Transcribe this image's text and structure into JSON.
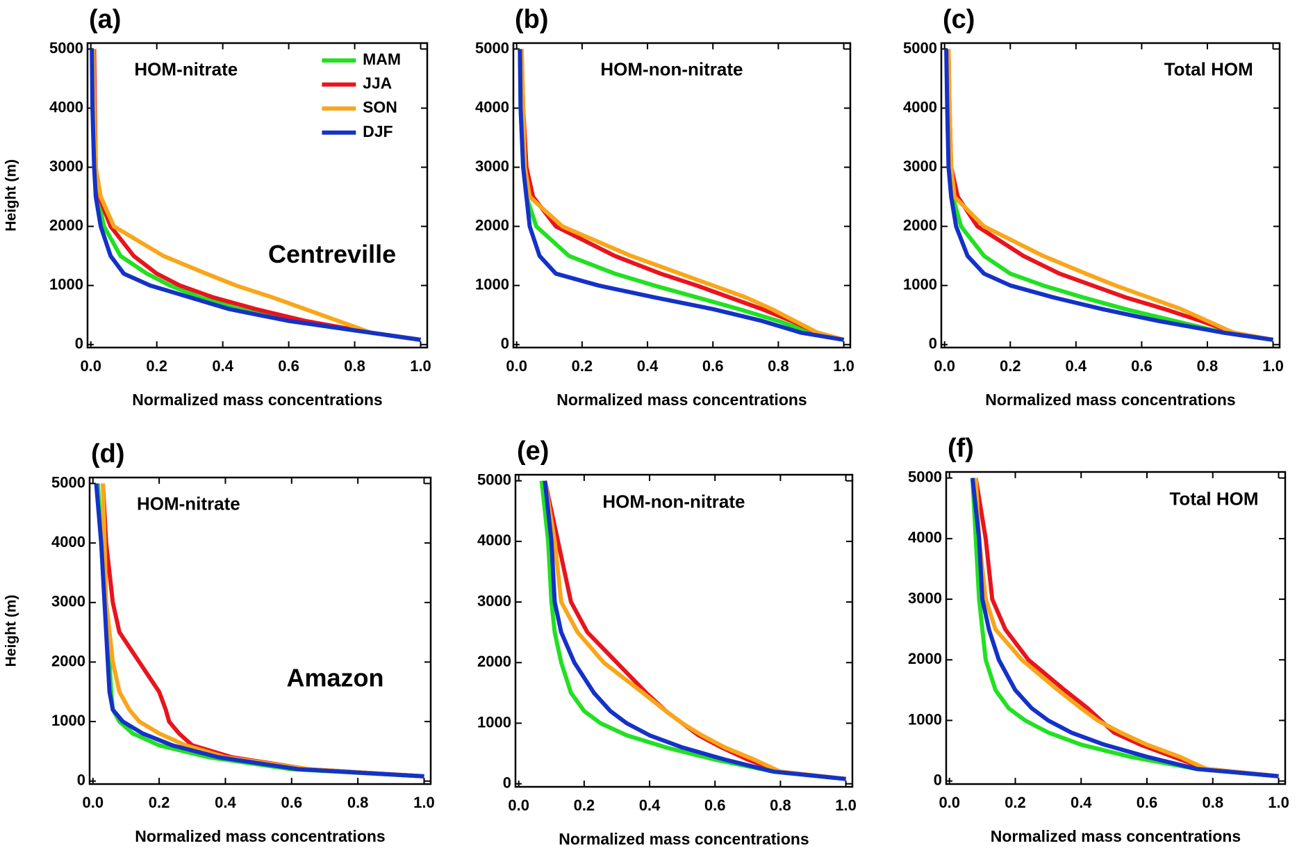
{
  "chart_data": [
    {
      "type": "line",
      "panel": "(a)",
      "annotation": "HOM-nitrate",
      "site": "Centreville",
      "xlabel": "Normalized mass concentrations",
      "ylabel": "Height (m)",
      "legend": "upper right",
      "xlim": [
        -0.01,
        1.02
      ],
      "ylim": [
        -50,
        5100
      ],
      "xticks": [
        {
          "value": 0,
          "label": "0.0"
        },
        0.2,
        0.4,
        0.6,
        0.8,
        {
          "value": 1,
          "label": "1.0"
        }
      ],
      "yticks": [
        0,
        1000,
        2000,
        3000,
        4000,
        5000
      ],
      "y": [
        80,
        200,
        400,
        600,
        800,
        1000,
        1200,
        1500,
        2000,
        2500,
        3000,
        4000,
        5000
      ],
      "series": [
        {
          "name": "MAM",
          "color": "#22e022",
          "values": [
            1.0,
            0.85,
            0.6,
            0.45,
            0.33,
            0.24,
            0.17,
            0.09,
            0.04,
            0.02,
            0.015,
            0.01,
            0.005
          ]
        },
        {
          "name": "JJA",
          "color": "#e8141e",
          "values": [
            1.0,
            0.85,
            0.65,
            0.5,
            0.37,
            0.27,
            0.2,
            0.13,
            0.06,
            0.025,
            0.015,
            0.012,
            0.01
          ]
        },
        {
          "name": "SON",
          "color": "#f9a61a",
          "values": [
            1.0,
            0.85,
            0.75,
            0.65,
            0.55,
            0.44,
            0.35,
            0.22,
            0.07,
            0.03,
            0.015,
            0.01,
            0.008
          ]
        },
        {
          "name": "DJF",
          "color": "#1432c8",
          "values": [
            1.0,
            0.85,
            0.6,
            0.42,
            0.3,
            0.18,
            0.1,
            0.06,
            0.03,
            0.015,
            0.01,
            0.005,
            0.003
          ]
        }
      ]
    },
    {
      "type": "line",
      "panel": "(b)",
      "annotation": "HOM-non-nitrate",
      "xlabel": "Normalized mass concentrations",
      "xlim": [
        -0.01,
        1.02
      ],
      "ylim": [
        -50,
        5100
      ],
      "xticks": [
        {
          "value": 0,
          "label": "0.0"
        },
        0.2,
        0.4,
        0.6,
        0.8,
        {
          "value": 1,
          "label": "1.0"
        }
      ],
      "yticks": [
        0,
        1000,
        2000,
        3000,
        4000,
        5000
      ],
      "y": [
        80,
        200,
        400,
        600,
        800,
        1000,
        1200,
        1500,
        2000,
        2500,
        3000,
        4000,
        5000
      ],
      "series": [
        {
          "color": "#22e022",
          "values": [
            1.0,
            0.9,
            0.8,
            0.68,
            0.55,
            0.42,
            0.3,
            0.16,
            0.06,
            0.03,
            0.02,
            0.012,
            0.01
          ]
        },
        {
          "color": "#e8141e",
          "values": [
            1.0,
            0.92,
            0.84,
            0.75,
            0.65,
            0.55,
            0.44,
            0.3,
            0.12,
            0.05,
            0.03,
            0.02,
            0.015
          ]
        },
        {
          "color": "#f9a61a",
          "values": [
            1.0,
            0.92,
            0.85,
            0.78,
            0.7,
            0.6,
            0.5,
            0.35,
            0.14,
            0.04,
            0.025,
            0.02,
            0.015
          ]
        },
        {
          "color": "#1432c8",
          "values": [
            1.0,
            0.87,
            0.75,
            0.6,
            0.42,
            0.25,
            0.12,
            0.07,
            0.04,
            0.03,
            0.02,
            0.012,
            0.01
          ]
        }
      ]
    },
    {
      "type": "line",
      "panel": "(c)",
      "annotation": "Total HOM",
      "xlabel": "Normalized mass concentrations",
      "xlim": [
        -0.01,
        1.02
      ],
      "ylim": [
        -50,
        5100
      ],
      "xticks": [
        {
          "value": 0,
          "label": "0.0"
        },
        0.2,
        0.4,
        0.6,
        0.8,
        {
          "value": 1,
          "label": "1.0"
        }
      ],
      "yticks": [
        0,
        1000,
        2000,
        3000,
        4000,
        5000
      ],
      "y": [
        80,
        200,
        400,
        600,
        800,
        1000,
        1200,
        1500,
        2000,
        2500,
        3000,
        4000,
        5000
      ],
      "series": [
        {
          "color": "#22e022",
          "values": [
            1.0,
            0.85,
            0.7,
            0.55,
            0.42,
            0.3,
            0.2,
            0.12,
            0.05,
            0.025,
            0.015,
            0.01,
            0.008
          ]
        },
        {
          "color": "#e8141e",
          "values": [
            1.0,
            0.88,
            0.78,
            0.67,
            0.55,
            0.45,
            0.35,
            0.24,
            0.1,
            0.04,
            0.02,
            0.015,
            0.012
          ]
        },
        {
          "color": "#f9a61a",
          "values": [
            1.0,
            0.88,
            0.8,
            0.72,
            0.62,
            0.52,
            0.43,
            0.3,
            0.12,
            0.03,
            0.02,
            0.015,
            0.012
          ]
        },
        {
          "color": "#1432c8",
          "values": [
            1.0,
            0.85,
            0.65,
            0.48,
            0.33,
            0.2,
            0.12,
            0.07,
            0.035,
            0.02,
            0.012,
            0.008,
            0.005
          ]
        }
      ]
    },
    {
      "type": "line",
      "panel": "(d)",
      "annotation": "HOM-nitrate",
      "site": "Amazon",
      "xlabel": "Normalized mass concentrations",
      "ylabel": "Height (m)",
      "xlim": [
        -0.01,
        1.02
      ],
      "ylim": [
        -50,
        5100
      ],
      "xticks": [
        {
          "value": 0,
          "label": "0.0"
        },
        0.2,
        0.4,
        0.6,
        0.8,
        {
          "value": 1,
          "label": "1.0"
        }
      ],
      "yticks": [
        0,
        1000,
        2000,
        3000,
        4000,
        5000
      ],
      "y": [
        80,
        200,
        400,
        600,
        800,
        1000,
        1200,
        1500,
        2000,
        2500,
        3000,
        4000,
        5000
      ],
      "series": [
        {
          "color": "#22e022",
          "values": [
            1.0,
            0.6,
            0.35,
            0.2,
            0.12,
            0.08,
            0.06,
            0.055,
            0.05,
            0.045,
            0.035,
            0.025,
            0.015
          ]
        },
        {
          "color": "#e8141e",
          "values": [
            1.0,
            0.65,
            0.42,
            0.3,
            0.26,
            0.23,
            0.22,
            0.2,
            0.14,
            0.08,
            0.06,
            0.04,
            0.03
          ]
        },
        {
          "color": "#f9a61a",
          "values": [
            1.0,
            0.65,
            0.4,
            0.28,
            0.2,
            0.14,
            0.11,
            0.08,
            0.06,
            0.05,
            0.04,
            0.035,
            0.03
          ]
        },
        {
          "color": "#1432c8",
          "values": [
            1.0,
            0.62,
            0.38,
            0.24,
            0.15,
            0.09,
            0.06,
            0.05,
            0.045,
            0.04,
            0.035,
            0.025,
            0.01
          ]
        }
      ]
    },
    {
      "type": "line",
      "panel": "(e)",
      "annotation": "HOM-non-nitrate",
      "xlabel": "Normalized mass concentrations",
      "xlim": [
        -0.01,
        1.02
      ],
      "ylim": [
        -50,
        5100
      ],
      "xticks": [
        {
          "value": 0,
          "label": "0.0"
        },
        0.2,
        0.4,
        0.6,
        0.8,
        {
          "value": 1,
          "label": "1.0"
        }
      ],
      "yticks": [
        0,
        1000,
        2000,
        3000,
        4000,
        5000
      ],
      "y": [
        80,
        200,
        400,
        600,
        800,
        1000,
        1200,
        1500,
        2000,
        2500,
        3000,
        4000,
        5000
      ],
      "series": [
        {
          "color": "#22e022",
          "values": [
            1.0,
            0.78,
            0.6,
            0.45,
            0.33,
            0.25,
            0.2,
            0.16,
            0.13,
            0.11,
            0.1,
            0.09,
            0.07
          ]
        },
        {
          "color": "#e8141e",
          "values": [
            1.0,
            0.8,
            0.7,
            0.62,
            0.55,
            0.5,
            0.45,
            0.39,
            0.3,
            0.21,
            0.16,
            0.12,
            0.08
          ]
        },
        {
          "color": "#f9a61a",
          "values": [
            1.0,
            0.8,
            0.72,
            0.63,
            0.56,
            0.5,
            0.45,
            0.38,
            0.26,
            0.18,
            0.13,
            0.11,
            0.08
          ]
        },
        {
          "color": "#1432c8",
          "values": [
            1.0,
            0.78,
            0.63,
            0.5,
            0.4,
            0.33,
            0.28,
            0.23,
            0.17,
            0.13,
            0.11,
            0.1,
            0.08
          ]
        }
      ]
    },
    {
      "type": "line",
      "panel": "(f)",
      "annotation": "Total HOM",
      "xlabel": "Normalized mass concentrations",
      "xlim": [
        -0.01,
        1.02
      ],
      "ylim": [
        -50,
        5100
      ],
      "xticks": [
        {
          "value": 0,
          "label": "0.0"
        },
        0.2,
        0.4,
        0.6,
        0.8,
        {
          "value": 1,
          "label": "1.0"
        }
      ],
      "yticks": [
        0,
        1000,
        2000,
        3000,
        4000,
        5000
      ],
      "y": [
        80,
        200,
        400,
        600,
        800,
        1000,
        1200,
        1500,
        2000,
        2500,
        3000,
        4000,
        5000
      ],
      "series": [
        {
          "color": "#22e022",
          "values": [
            1.0,
            0.75,
            0.55,
            0.4,
            0.3,
            0.23,
            0.18,
            0.14,
            0.11,
            0.1,
            0.09,
            0.08,
            0.07
          ]
        },
        {
          "color": "#e8141e",
          "values": [
            1.0,
            0.78,
            0.68,
            0.58,
            0.5,
            0.46,
            0.42,
            0.35,
            0.24,
            0.17,
            0.13,
            0.11,
            0.08
          ]
        },
        {
          "color": "#f9a61a",
          "values": [
            1.0,
            0.78,
            0.7,
            0.6,
            0.52,
            0.45,
            0.4,
            0.33,
            0.22,
            0.14,
            0.11,
            0.09,
            0.08
          ]
        },
        {
          "color": "#1432c8",
          "values": [
            1.0,
            0.75,
            0.6,
            0.47,
            0.37,
            0.3,
            0.25,
            0.2,
            0.15,
            0.12,
            0.1,
            0.09,
            0.07
          ]
        }
      ]
    }
  ]
}
